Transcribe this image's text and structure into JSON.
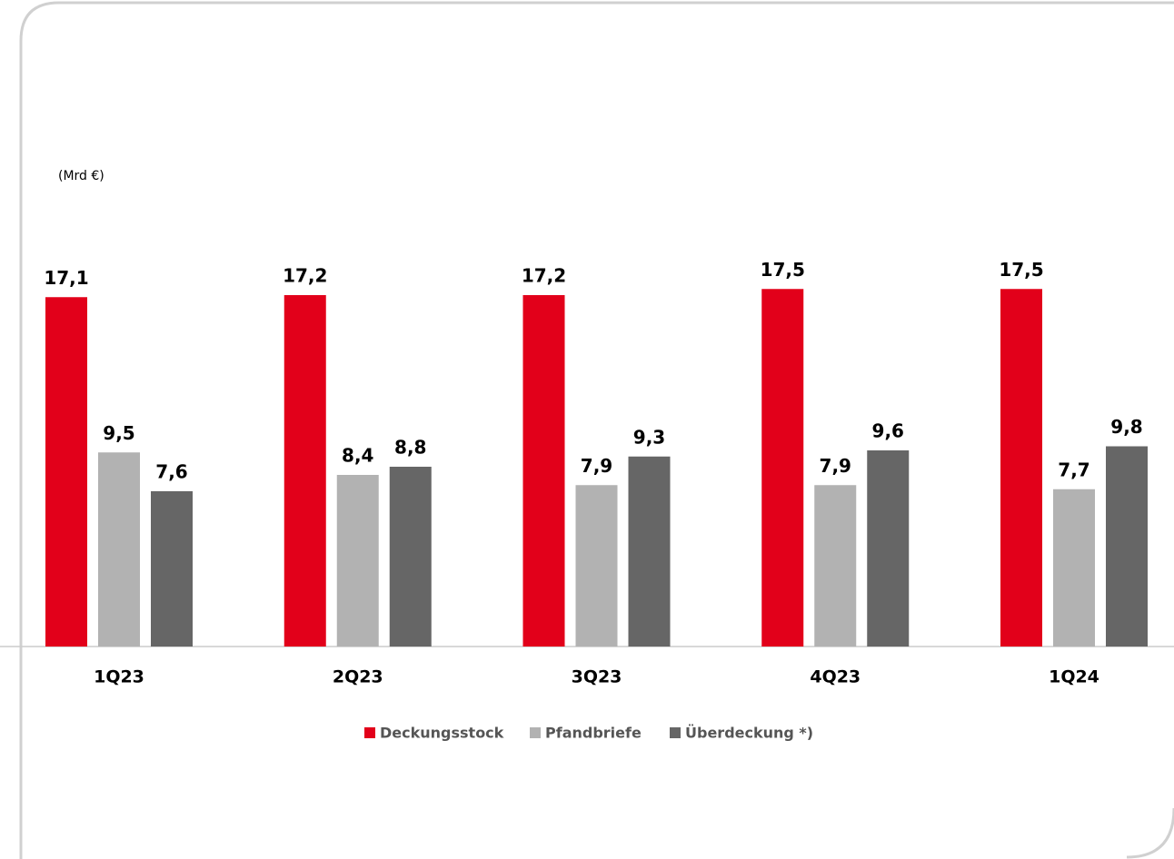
{
  "chart_data": {
    "type": "bar",
    "unit_label": "(Mrd €)",
    "categories": [
      "1Q23",
      "2Q23",
      "3Q23",
      "4Q23",
      "1Q24"
    ],
    "series": [
      {
        "name": "Deckungsstock",
        "color": "#e2001a",
        "values": [
          17.1,
          17.2,
          17.2,
          17.5,
          17.5
        ],
        "value_labels": [
          "17,1",
          "17,2",
          "17,2",
          "17,5",
          "17,5"
        ]
      },
      {
        "name": "Pfandbriefe",
        "color": "#b2b2b2",
        "values": [
          9.5,
          8.4,
          7.9,
          7.9,
          7.7
        ],
        "value_labels": [
          "9,5",
          "8,4",
          "7,9",
          "7,9",
          "7,7"
        ]
      },
      {
        "name": "Überdeckung *)",
        "color": "#666666",
        "values": [
          7.6,
          8.8,
          9.3,
          9.6,
          9.8
        ],
        "value_labels": [
          "7,6",
          "8,8",
          "9,3",
          "9,6",
          "9,8"
        ]
      }
    ],
    "ylim": [
      0,
      20
    ]
  }
}
